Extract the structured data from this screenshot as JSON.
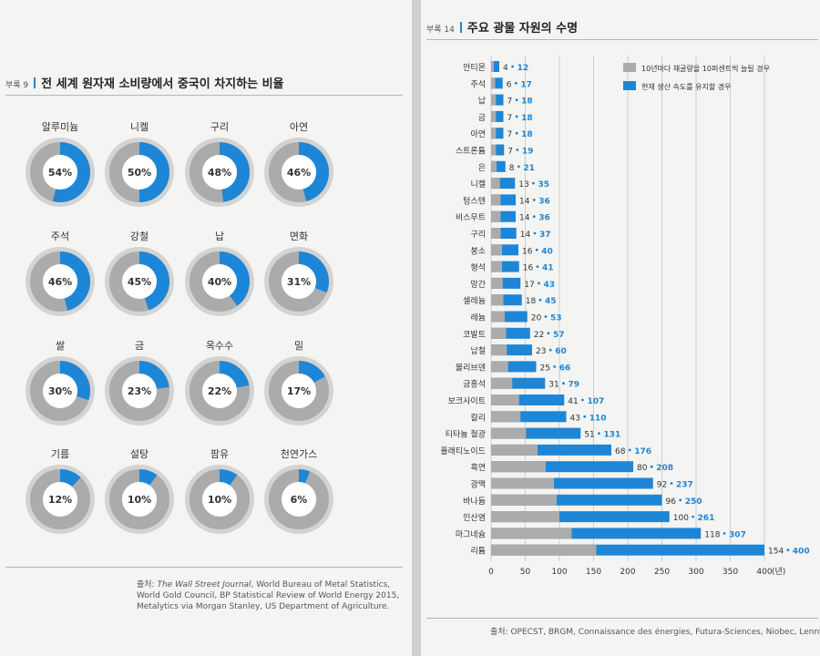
{
  "left_page": {
    "appendix_tag": "부록 9",
    "title": "전 세계 원자재 소비량에서 중국이 차지하는 비율",
    "source_label": "출처:",
    "source_italic": "The Wall Street Journal",
    "source_rest_1": ", World Bureau of Metal Statistics,",
    "source_line_2": "World Gold Council, BP Statistical Review of World Energy 2015,",
    "source_line_3": "Metalytics via Morgan Stanley, US Department of Agriculture."
  },
  "right_page": {
    "appendix_tag": "부록 14",
    "title": "주요 광물 자원의 수명",
    "source_line": "출처: OPECST, BRGM, Connaissance des énergies, Futura-Sciences, Niobec, Lenntech."
  },
  "colors": {
    "blue": "#1e86d6",
    "gray": "#ababab",
    "light_gray": "#d3d3d3",
    "white": "#ffffff"
  },
  "chart_data": [
    {
      "type": "pie",
      "title": "전 세계 원자재 소비량에서 중국이 차지하는 비율",
      "categories": [
        "알루미늄",
        "니켈",
        "구리",
        "아연",
        "주석",
        "강철",
        "납",
        "면화",
        "쌀",
        "금",
        "옥수수",
        "밀",
        "기름",
        "설탕",
        "팜유",
        "천연가스"
      ],
      "values": [
        54,
        50,
        48,
        46,
        46,
        45,
        40,
        31,
        30,
        23,
        22,
        17,
        12,
        10,
        10,
        6
      ],
      "labels": [
        "54%",
        "50%",
        "48%",
        "46%",
        "46%",
        "45%",
        "40%",
        "31%",
        "30%",
        "23%",
        "22%",
        "17%",
        "12%",
        "10%",
        "10%",
        "6%"
      ]
    },
    {
      "type": "bar",
      "title": "주요 광물 자원의 수명",
      "categories": [
        "안티몬",
        "주석",
        "납",
        "금",
        "아연",
        "스트론튬",
        "은",
        "니켈",
        "텅스텐",
        "비스무트",
        "구리",
        "붕소",
        "형석",
        "망간",
        "셀레늄",
        "레늄",
        "코발트",
        "납철",
        "몰리브덴",
        "금홍석",
        "보크사이트",
        "칼리",
        "티타늄 철광",
        "플래티노이드",
        "흑연",
        "광맥",
        "바나듐",
        "인산염",
        "마그네슘",
        "리튬"
      ],
      "series": [
        {
          "name": "10년마다 채굴량을 10퍼센트씩 늘릴 경우",
          "values": [
            4,
            6,
            7,
            7,
            7,
            7,
            8,
            13,
            14,
            14,
            14,
            16,
            16,
            17,
            18,
            20,
            22,
            23,
            25,
            31,
            41,
            43,
            51,
            68,
            80,
            92,
            96,
            100,
            118,
            154
          ]
        },
        {
          "name": "현재 생산 속도를 유지할 경우",
          "values": [
            12,
            17,
            18,
            18,
            18,
            19,
            21,
            35,
            36,
            36,
            37,
            40,
            41,
            43,
            45,
            53,
            57,
            60,
            66,
            79,
            107,
            110,
            131,
            176,
            208,
            237,
            250,
            261,
            307,
            400
          ]
        }
      ],
      "xticks": [
        "0",
        "50",
        "100",
        "150",
        "200",
        "250",
        "300",
        "350",
        "400"
      ],
      "xunit": "(년)",
      "xlim": [
        0,
        400
      ],
      "grid": true,
      "legend_position": "top-right"
    }
  ]
}
